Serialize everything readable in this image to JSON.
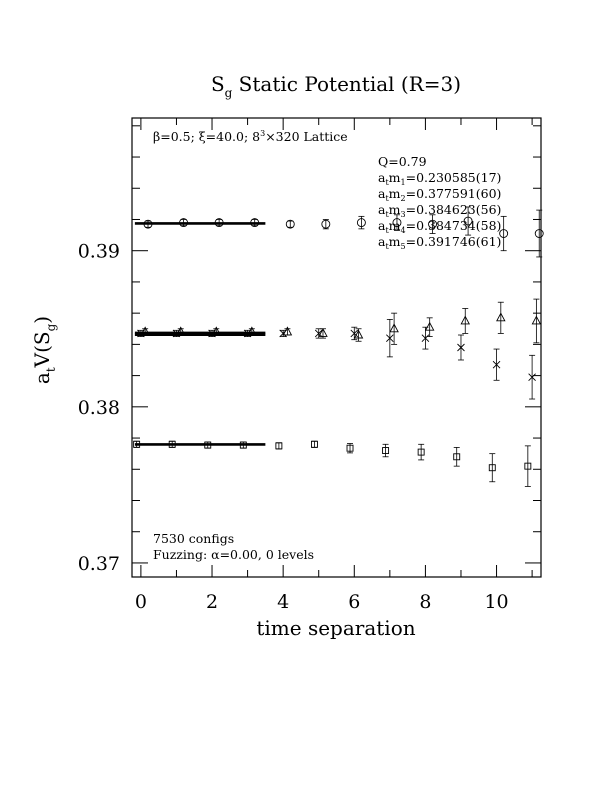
{
  "chart_data": {
    "type": "scatter",
    "title": {
      "main": "S",
      "sub": "g",
      "rest": " Static Potential (R=3)"
    },
    "ylabel": {
      "main": "a",
      "sub1": "t",
      "mid": "V(S",
      "sub2": "g",
      "end": ")"
    },
    "xlabel": "time separation",
    "xlim": [
      -0.25,
      11.25
    ],
    "ylim": [
      0.3691,
      0.3985
    ],
    "x_ticks": [
      0,
      2,
      4,
      6,
      8,
      10
    ],
    "x_tick_labels": [
      "0",
      "2",
      "4",
      "6",
      "8",
      "10"
    ],
    "y_ticks": [
      0.37,
      0.38,
      0.39
    ],
    "y_tick_labels": [
      "0.37",
      "0.38",
      "0.39"
    ],
    "top_note": {
      "beta": "β=0.5; ξ=40.0; 8",
      "exp": "3",
      "rest": "×320 Lattice"
    },
    "fit_info": {
      "Q": "Q=0.79",
      "masses": [
        {
          "idx": "1",
          "value": "=0.230585(17)"
        },
        {
          "idx": "2",
          "value": "=0.377591(60)"
        },
        {
          "idx": "3",
          "value": "=0.384623(56)"
        },
        {
          "idx": "4",
          "value": "=0.384734(58)"
        },
        {
          "idx": "5",
          "value": "=0.391746(61)"
        }
      ]
    },
    "bottom_note": {
      "configs": "7530 configs",
      "fuzzing": "Fuzzing: α=0.00, 0 levels"
    },
    "series": [
      {
        "marker": "square",
        "points": [
          {
            "x": 0,
            "y": 0.3776,
            "e": 0.0002
          },
          {
            "x": 1,
            "y": 0.3776,
            "e": 0.0002
          },
          {
            "x": 2,
            "y": 0.37755,
            "e": 0.0002
          },
          {
            "x": 3,
            "y": 0.37755,
            "e": 0.0002
          },
          {
            "x": 4,
            "y": 0.3775,
            "e": 0.0002
          },
          {
            "x": 5,
            "y": 0.3776,
            "e": 0.0002
          },
          {
            "x": 6,
            "y": 0.37735,
            "e": 0.0003
          },
          {
            "x": 7,
            "y": 0.3772,
            "e": 0.0004
          },
          {
            "x": 8,
            "y": 0.3771,
            "e": 0.0005
          },
          {
            "x": 9,
            "y": 0.3768,
            "e": 0.0006
          },
          {
            "x": 10,
            "y": 0.3761,
            "e": 0.0009
          },
          {
            "x": 11,
            "y": 0.3762,
            "e": 0.0013
          }
        ]
      },
      {
        "marker": "cross",
        "points": [
          {
            "x": 0,
            "y": 0.3847,
            "e": 0.0002
          },
          {
            "x": 1,
            "y": 0.3847,
            "e": 0.0002
          },
          {
            "x": 2,
            "y": 0.3847,
            "e": 0.0002
          },
          {
            "x": 3,
            "y": 0.3847,
            "e": 0.0002
          },
          {
            "x": 4,
            "y": 0.3847,
            "e": 0.0002
          },
          {
            "x": 5,
            "y": 0.3847,
            "e": 0.0003
          },
          {
            "x": 6,
            "y": 0.3847,
            "e": 0.0004
          },
          {
            "x": 7,
            "y": 0.3844,
            "e": 0.0012
          },
          {
            "x": 8,
            "y": 0.3844,
            "e": 0.0007
          },
          {
            "x": 9,
            "y": 0.3838,
            "e": 0.0008
          },
          {
            "x": 10,
            "y": 0.3827,
            "e": 0.001
          },
          {
            "x": 11,
            "y": 0.3819,
            "e": 0.0014
          }
        ]
      },
      {
        "marker": "triangle",
        "points": [
          {
            "x": 0,
            "y": 0.3848,
            "e": 0.0002
          },
          {
            "x": 1,
            "y": 0.3848,
            "e": 0.0002
          },
          {
            "x": 2,
            "y": 0.3848,
            "e": 0.0002
          },
          {
            "x": 3,
            "y": 0.3848,
            "e": 0.0002
          },
          {
            "x": 4,
            "y": 0.3848,
            "e": 0.0002
          },
          {
            "x": 5,
            "y": 0.3847,
            "e": 0.0003
          },
          {
            "x": 6,
            "y": 0.3846,
            "e": 0.0004
          },
          {
            "x": 7,
            "y": 0.385,
            "e": 0.001
          },
          {
            "x": 8,
            "y": 0.3851,
            "e": 0.0006
          },
          {
            "x": 9,
            "y": 0.3855,
            "e": 0.0008
          },
          {
            "x": 10,
            "y": 0.3857,
            "e": 0.001
          },
          {
            "x": 11,
            "y": 0.3855,
            "e": 0.0014
          }
        ]
      },
      {
        "marker": "circle",
        "points": [
          {
            "x": 0,
            "y": 0.3917,
            "e": 0.0002
          },
          {
            "x": 1,
            "y": 0.3918,
            "e": 0.0002
          },
          {
            "x": 2,
            "y": 0.3918,
            "e": 0.0002
          },
          {
            "x": 3,
            "y": 0.3918,
            "e": 0.0002
          },
          {
            "x": 4,
            "y": 0.3917,
            "e": 0.0002
          },
          {
            "x": 5,
            "y": 0.3917,
            "e": 0.0003
          },
          {
            "x": 6,
            "y": 0.3918,
            "e": 0.0004
          },
          {
            "x": 7,
            "y": 0.3918,
            "e": 0.0005
          },
          {
            "x": 8,
            "y": 0.3917,
            "e": 0.0006
          },
          {
            "x": 9,
            "y": 0.3919,
            "e": 0.0009
          },
          {
            "x": 10,
            "y": 0.3911,
            "e": 0.0011
          },
          {
            "x": 11,
            "y": 0.3911,
            "e": 0.0015
          }
        ]
      }
    ],
    "fits": [
      {
        "y": 0.377591,
        "x_from": 0,
        "x_to": 3.5
      },
      {
        "y": 0.384623,
        "x_from": 0,
        "x_to": 3.5
      },
      {
        "y": 0.384734,
        "x_from": 0,
        "x_to": 3.5
      },
      {
        "y": 0.391746,
        "x_from": 0,
        "x_to": 3.5
      }
    ]
  }
}
